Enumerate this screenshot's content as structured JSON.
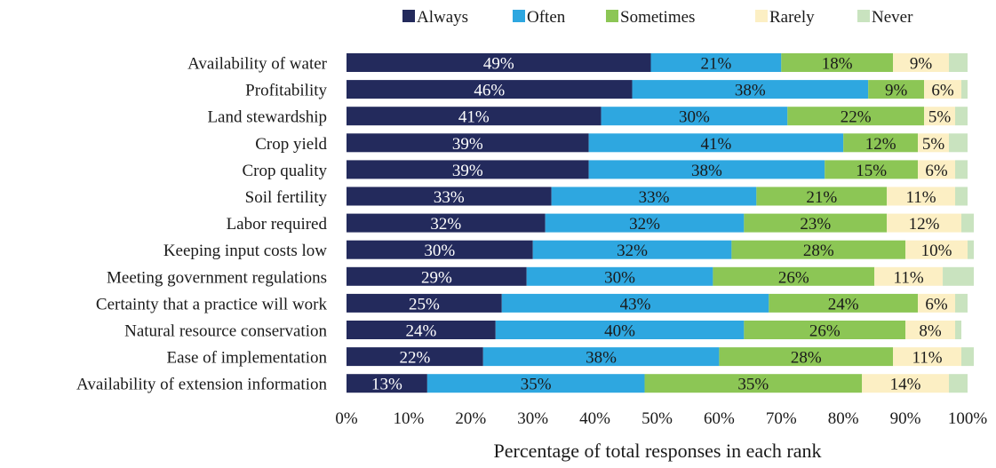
{
  "chart_data": {
    "type": "bar",
    "orientation": "horizontal",
    "stacked": true,
    "xlabel": "Percentage of total responses in each rank",
    "ylabel": "",
    "xlim": [
      0,
      100
    ],
    "x_ticks": [
      "0%",
      "10%",
      "20%",
      "30%",
      "40%",
      "50%",
      "60%",
      "70%",
      "80%",
      "90%",
      "100%"
    ],
    "legend_position": "top",
    "grid": false,
    "categories": [
      "Availability of water",
      "Profitability",
      "Land stewardship",
      "Crop yield",
      "Crop quality",
      "Soil fertility",
      "Labor required",
      "Keeping input costs low",
      "Meeting government regulations",
      "Certainty that a practice will work",
      "Natural resource conservation",
      "Ease of implementation",
      "Availability of extension information"
    ],
    "series": [
      {
        "name": "Always",
        "color": "#232a5c",
        "label_color": "#ffffff",
        "values": [
          49,
          46,
          41,
          39,
          39,
          33,
          32,
          30,
          29,
          25,
          24,
          22,
          13
        ]
      },
      {
        "name": "Often",
        "color": "#2ea7e0",
        "label_color": "#1a1a1a",
        "values": [
          21,
          38,
          30,
          41,
          38,
          33,
          32,
          32,
          30,
          43,
          40,
          38,
          35
        ]
      },
      {
        "name": "Sometimes",
        "color": "#8cc655",
        "label_color": "#1a1a1a",
        "values": [
          18,
          9,
          22,
          12,
          15,
          21,
          23,
          28,
          26,
          24,
          26,
          28,
          35
        ]
      },
      {
        "name": "Rarely",
        "color": "#fcefc4",
        "label_color": "#1a1a1a",
        "values": [
          9,
          6,
          5,
          5,
          6,
          11,
          12,
          10,
          11,
          6,
          8,
          11,
          14
        ]
      },
      {
        "name": "Never",
        "color": "#c9e3bf",
        "label_color": "#1a1a1a",
        "values": [
          3,
          1,
          2,
          3,
          2,
          2,
          2,
          1,
          5,
          2,
          1,
          2,
          3
        ]
      }
    ],
    "data_labels": [
      [
        "49%",
        "21%",
        "18%",
        "9%",
        ""
      ],
      [
        "46%",
        "38%",
        "9%",
        "6%",
        ""
      ],
      [
        "41%",
        "30%",
        "22%",
        "5%",
        ""
      ],
      [
        "39%",
        "41%",
        "12%",
        "5%",
        ""
      ],
      [
        "39%",
        "38%",
        "15%",
        "6%",
        ""
      ],
      [
        "33%",
        "33%",
        "21%",
        "11%",
        ""
      ],
      [
        "32%",
        "32%",
        "23%",
        "12%",
        ""
      ],
      [
        "30%",
        "32%",
        "28%",
        "10%",
        ""
      ],
      [
        "29%",
        "30%",
        "26%",
        "11%",
        ""
      ],
      [
        "25%",
        "43%",
        "24%",
        "6%",
        ""
      ],
      [
        "24%",
        "40%",
        "26%",
        "8%",
        ""
      ],
      [
        "22%",
        "38%",
        "28%",
        "11%",
        ""
      ],
      [
        "13%",
        "35%",
        "35%",
        "14%",
        ""
      ]
    ]
  }
}
